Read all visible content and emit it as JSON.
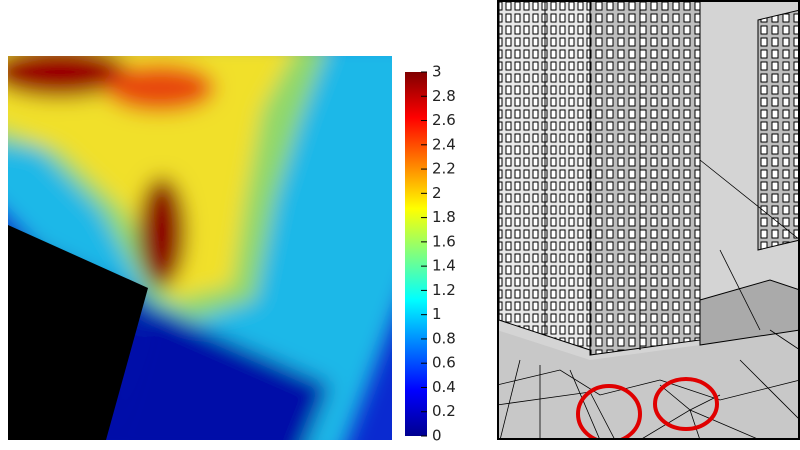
{
  "colorbar": {
    "range": [
      0,
      3
    ],
    "ticks": [
      0,
      0.2,
      0.4,
      0.6,
      0.8,
      1,
      1.2,
      1.4,
      1.6,
      1.8,
      2,
      2.2,
      2.4,
      2.6,
      2.8,
      3
    ]
  }
}
